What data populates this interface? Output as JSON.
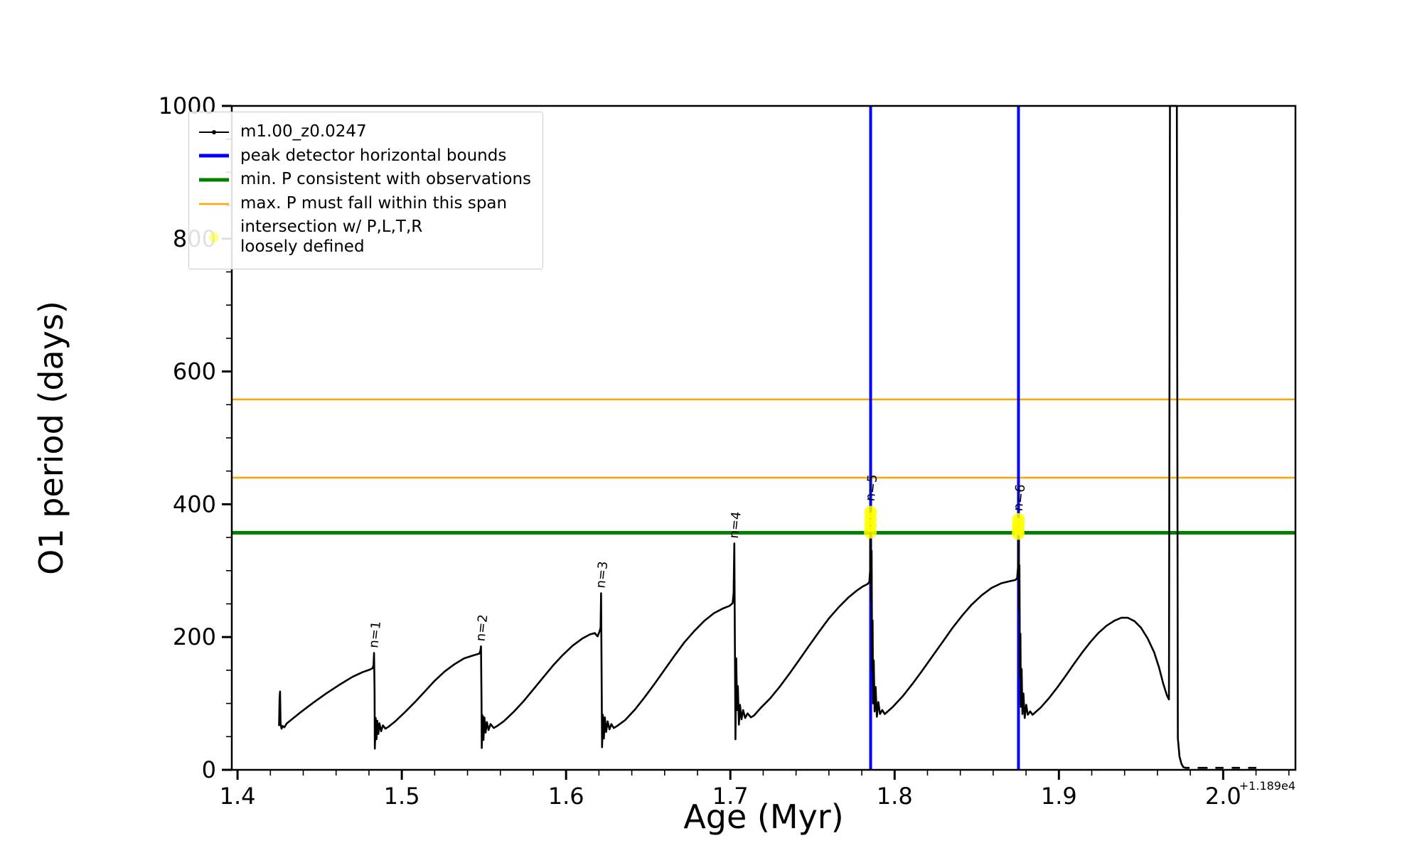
{
  "chart_data": {
    "type": "line",
    "title": "",
    "xlabel": "Age (Myr)",
    "ylabel": "O1 period (days)",
    "x_offset_text": "+1.189e4",
    "xlim": [
      1.3965,
      2.044
    ],
    "ylim": [
      0,
      1000
    ],
    "grid": false,
    "legend_position": "upper left",
    "x_ticks": [
      1.4,
      1.5,
      1.6,
      1.7,
      1.8,
      1.9,
      2.0
    ],
    "x_tick_labels": [
      "1.4",
      "1.5",
      "1.6",
      "1.7",
      "1.8",
      "1.9",
      "2.0"
    ],
    "y_ticks": [
      0,
      200,
      400,
      600,
      800,
      1000
    ],
    "y_tick_labels": [
      "0",
      "200",
      "400",
      "600",
      "800",
      "1000"
    ],
    "x_minor_step": 0.02,
    "y_minor_step": 50,
    "series": [
      {
        "name": "m1.00_z0.0247",
        "color": "#000000",
        "lw": 2.6,
        "marker": "point",
        "points": [
          [
            1.4253,
            66
          ],
          [
            1.4256,
            108
          ],
          [
            1.4259,
            118
          ],
          [
            1.4262,
            70
          ],
          [
            1.4268,
            62
          ],
          [
            1.4275,
            66
          ],
          [
            1.4285,
            64
          ],
          [
            1.43,
            70
          ],
          [
            1.438,
            86
          ],
          [
            1.446,
            101
          ],
          [
            1.454,
            115
          ],
          [
            1.462,
            128
          ],
          [
            1.47,
            140
          ],
          [
            1.476,
            147
          ],
          [
            1.4805,
            151
          ],
          [
            1.4822,
            153
          ],
          [
            1.4828,
            158
          ],
          [
            1.4831,
            176
          ],
          [
            1.4834,
            120
          ],
          [
            1.4836,
            32
          ],
          [
            1.4841,
            78
          ],
          [
            1.4846,
            46
          ],
          [
            1.4851,
            74
          ],
          [
            1.4857,
            54
          ],
          [
            1.4864,
            70
          ],
          [
            1.4874,
            58
          ],
          [
            1.4885,
            67
          ],
          [
            1.49,
            62
          ],
          [
            1.492,
            65
          ],
          [
            1.496,
            73
          ],
          [
            1.502,
            87
          ],
          [
            1.508,
            102
          ],
          [
            1.514,
            118
          ],
          [
            1.52,
            134
          ],
          [
            1.526,
            148
          ],
          [
            1.532,
            159
          ],
          [
            1.538,
            168
          ],
          [
            1.543,
            172
          ],
          [
            1.5472,
            175
          ],
          [
            1.5478,
            179
          ],
          [
            1.5482,
            186
          ],
          [
            1.5485,
            110
          ],
          [
            1.5487,
            33
          ],
          [
            1.5492,
            82
          ],
          [
            1.5497,
            45
          ],
          [
            1.5503,
            79
          ],
          [
            1.551,
            56
          ],
          [
            1.5518,
            72
          ],
          [
            1.5528,
            60
          ],
          [
            1.554,
            69
          ],
          [
            1.556,
            63
          ],
          [
            1.558,
            66
          ],
          [
            1.562,
            73
          ],
          [
            1.568,
            87
          ],
          [
            1.574,
            103
          ],
          [
            1.58,
            121
          ],
          [
            1.586,
            139
          ],
          [
            1.592,
            157
          ],
          [
            1.598,
            173
          ],
          [
            1.604,
            187
          ],
          [
            1.61,
            198
          ],
          [
            1.6145,
            204
          ],
          [
            1.6175,
            206
          ],
          [
            1.6192,
            201
          ],
          [
            1.6203,
            208
          ],
          [
            1.621,
            214
          ],
          [
            1.6213,
            266
          ],
          [
            1.6216,
            150
          ],
          [
            1.6219,
            34
          ],
          [
            1.6224,
            83
          ],
          [
            1.623,
            47
          ],
          [
            1.6236,
            79
          ],
          [
            1.6244,
            57
          ],
          [
            1.6253,
            73
          ],
          [
            1.6264,
            61
          ],
          [
            1.6276,
            69
          ],
          [
            1.629,
            63
          ],
          [
            1.631,
            66
          ],
          [
            1.636,
            75
          ],
          [
            1.642,
            91
          ],
          [
            1.648,
            110
          ],
          [
            1.654,
            130
          ],
          [
            1.66,
            151
          ],
          [
            1.666,
            172
          ],
          [
            1.672,
            192
          ],
          [
            1.678,
            209
          ],
          [
            1.684,
            224
          ],
          [
            1.69,
            236
          ],
          [
            1.6955,
            243
          ],
          [
            1.6995,
            247
          ],
          [
            1.7014,
            251
          ],
          [
            1.702,
            266
          ],
          [
            1.7024,
            341
          ],
          [
            1.7028,
            170
          ],
          [
            1.7031,
            46
          ],
          [
            1.7036,
            168
          ],
          [
            1.7041,
            90
          ],
          [
            1.7046,
            126
          ],
          [
            1.7052,
            68
          ],
          [
            1.7059,
            98
          ],
          [
            1.7068,
            76
          ],
          [
            1.7078,
            90
          ],
          [
            1.709,
            78
          ],
          [
            1.7105,
            85
          ],
          [
            1.7125,
            79
          ],
          [
            1.7145,
            82
          ],
          [
            1.718,
            92
          ],
          [
            1.724,
            107
          ],
          [
            1.73,
            125
          ],
          [
            1.736,
            145
          ],
          [
            1.742,
            166
          ],
          [
            1.748,
            187
          ],
          [
            1.754,
            208
          ],
          [
            1.76,
            228
          ],
          [
            1.766,
            245
          ],
          [
            1.772,
            260
          ],
          [
            1.777,
            270
          ],
          [
            1.7805,
            276
          ],
          [
            1.7836,
            280
          ],
          [
            1.7846,
            283
          ],
          [
            1.7851,
            300
          ],
          [
            1.7854,
            396
          ],
          [
            1.7857,
            255
          ],
          [
            1.786,
            330
          ],
          [
            1.7863,
            150
          ],
          [
            1.7866,
            225
          ],
          [
            1.7869,
            100
          ],
          [
            1.7873,
            165
          ],
          [
            1.7878,
            88
          ],
          [
            1.7884,
            125
          ],
          [
            1.7892,
            80
          ],
          [
            1.7901,
            102
          ],
          [
            1.7911,
            84
          ],
          [
            1.7925,
            90
          ],
          [
            1.794,
            84
          ],
          [
            1.799,
            95
          ],
          [
            1.805,
            111
          ],
          [
            1.811,
            130
          ],
          [
            1.817,
            150
          ],
          [
            1.823,
            171
          ],
          [
            1.829,
            192
          ],
          [
            1.835,
            213
          ],
          [
            1.841,
            232
          ],
          [
            1.847,
            249
          ],
          [
            1.853,
            263
          ],
          [
            1.859,
            274
          ],
          [
            1.865,
            281
          ],
          [
            1.87,
            284
          ],
          [
            1.8736,
            286
          ],
          [
            1.8746,
            289
          ],
          [
            1.8751,
            305
          ],
          [
            1.8754,
            381
          ],
          [
            1.8757,
            240
          ],
          [
            1.876,
            308
          ],
          [
            1.8763,
            140
          ],
          [
            1.8766,
            205
          ],
          [
            1.8769,
            95
          ],
          [
            1.8773,
            152
          ],
          [
            1.8778,
            84
          ],
          [
            1.8784,
            115
          ],
          [
            1.8792,
            78
          ],
          [
            1.8801,
            98
          ],
          [
            1.8811,
            83
          ],
          [
            1.8825,
            88
          ],
          [
            1.884,
            83
          ],
          [
            1.889,
            94
          ],
          [
            1.894,
            108
          ],
          [
            1.899,
            124
          ],
          [
            1.904,
            141
          ],
          [
            1.909,
            159
          ],
          [
            1.914,
            176
          ],
          [
            1.919,
            192
          ],
          [
            1.924,
            206
          ],
          [
            1.929,
            217
          ],
          [
            1.934,
            225
          ],
          [
            1.938,
            229
          ],
          [
            1.942,
            229
          ],
          [
            1.946,
            224
          ],
          [
            1.95,
            214
          ],
          [
            1.954,
            198
          ],
          [
            1.958,
            177
          ],
          [
            1.961,
            154
          ],
          [
            1.9635,
            130
          ],
          [
            1.9658,
            112
          ],
          [
            1.967,
            106
          ],
          [
            1.9676,
            1000
          ],
          [
            1.9718,
            1000
          ],
          [
            1.9724,
            48
          ],
          [
            1.9734,
            20
          ],
          [
            1.9746,
            9
          ],
          [
            1.9758,
            4
          ],
          [
            1.9772,
            3
          ],
          [
            1.9795,
            3
          ],
          null,
          [
            1.9845,
            3
          ],
          [
            1.9905,
            3
          ],
          null,
          [
            1.9952,
            3
          ],
          [
            2.0002,
            3
          ],
          null,
          [
            2.0052,
            3
          ],
          [
            2.0102,
            3
          ],
          null,
          [
            2.0152,
            3
          ],
          [
            2.0202,
            3
          ]
        ]
      }
    ],
    "vlines": {
      "label": "peak detector horizontal bounds",
      "color": "#0000ff",
      "lw": 4,
      "x": [
        1.7854,
        1.8754
      ]
    },
    "hlines": [
      {
        "label": "min. P consistent with observations",
        "color": "#008000",
        "lw": 5,
        "y": [
          357
        ]
      },
      {
        "label": "max. P must fall within this span",
        "color": "#ffa500",
        "lw": 2.5,
        "y": [
          440,
          558
        ]
      }
    ],
    "intersections": {
      "label": "intersection w/ P,L,T,R loosely defined",
      "color": "#ffff00",
      "marker_radius": 9,
      "points": [
        [
          1.7852,
          358
        ],
        [
          1.7853,
          368
        ],
        [
          1.7853,
          378
        ],
        [
          1.7854,
          388
        ],
        [
          1.8752,
          356
        ],
        [
          1.8753,
          363
        ],
        [
          1.8753,
          370
        ],
        [
          1.8754,
          377
        ]
      ]
    },
    "peak_labels": [
      {
        "x": 1.4831,
        "y": 183,
        "text": "n=1"
      },
      {
        "x": 1.5482,
        "y": 193,
        "text": "n=2"
      },
      {
        "x": 1.6213,
        "y": 273,
        "text": "n=3"
      },
      {
        "x": 1.7024,
        "y": 348,
        "text": "n=4"
      },
      {
        "x": 1.7854,
        "y": 404,
        "text": "n=5"
      },
      {
        "x": 1.8754,
        "y": 389,
        "text": "n=6"
      }
    ]
  },
  "legend": {
    "items": [
      {
        "swatch": "line-marker",
        "color": "#000000",
        "lw": 2,
        "label": "m1.00_z0.0247"
      },
      {
        "swatch": "line",
        "color": "#0000ff",
        "lw": 5,
        "label": "peak detector horizontal bounds"
      },
      {
        "swatch": "line",
        "color": "#008000",
        "lw": 5,
        "label": "min. P consistent with observations"
      },
      {
        "swatch": "line",
        "color": "#ffa500",
        "lw": 2.5,
        "label": "max. P must fall within this span"
      },
      {
        "swatch": "dot",
        "color": "#ffff00",
        "lw": 0,
        "label": "intersection w/ P,L,T,R\nloosely defined"
      }
    ]
  }
}
